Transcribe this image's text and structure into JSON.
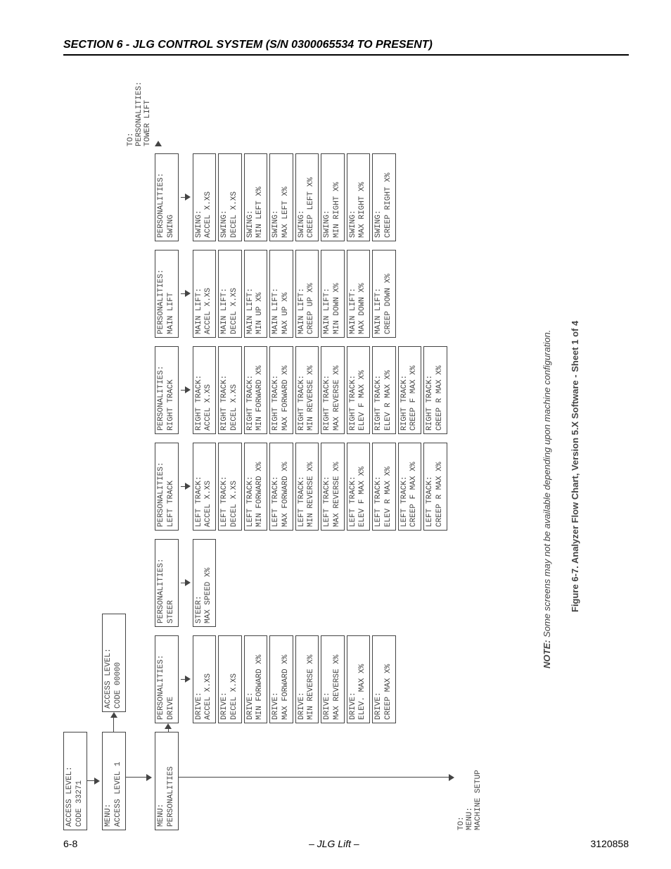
{
  "header": {
    "section_title": "SECTION 6 - JLG CONTROL SYSTEM (S/N 0300065534 TO PRESENT)"
  },
  "footer": {
    "page_left": "6-8",
    "center": "– JLG Lift –",
    "page_right": "3120858"
  },
  "note": {
    "label": "NOTE:",
    "text": "Some screens may not be available depending upon machine configuration."
  },
  "figure_caption": "Figure 6-7.  Analyzer Flow Chart, Version 5.X Software - Sheet 1 of 4",
  "access_level_top": {
    "l1": "ACCESS LEVEL:",
    "l2": "CODE 33271"
  },
  "menu_access_level_1": {
    "l1": "MENU:",
    "l2": "ACCESS LEVEL 1"
  },
  "access_level_code": {
    "l1": "ACCESS LEVEL:",
    "l2": "CODE 00000"
  },
  "menu_personalities": {
    "l1": "MENU:",
    "l2": "PERSONALITIES"
  },
  "to_machine_setup": {
    "l1": "TO:",
    "l2": "MENU:",
    "l3": "MACHINE SETUP"
  },
  "to_tower_lift": {
    "l1": "TO:",
    "l2": "PERSONALITIES:",
    "l3": "TOWER LIFT"
  },
  "columns": {
    "drive": {
      "head": {
        "l1": "PERSONALITIES:",
        "l2": "DRIVE"
      },
      "items": [
        {
          "l1": "DRIVE:",
          "l2": "ACCEL X.XS"
        },
        {
          "l1": "DRIVE:",
          "l2": "DECEL X.XS"
        },
        {
          "l1": "DRIVE:",
          "l2": "MIN FORWARD X%"
        },
        {
          "l1": "DRIVE:",
          "l2": "MAX FORWARD X%"
        },
        {
          "l1": "DRIVE:",
          "l2": "MIN REVERSE X%"
        },
        {
          "l1": "DRIVE:",
          "l2": "MAX REVERSE X%"
        },
        {
          "l1": "DRIVE:",
          "l2": "ELEV. MAX X%"
        },
        {
          "l1": "DRIVE:",
          "l2": "CREEP MAX X%"
        }
      ]
    },
    "steer": {
      "head": {
        "l1": "PERSONALITIES:",
        "l2": "STEER"
      },
      "items": [
        {
          "l1": "STEER:",
          "l2": "MAX SPEED X%"
        }
      ]
    },
    "left_track": {
      "head": {
        "l1": "PERSONALITIES:",
        "l2": "LEFT TRACK"
      },
      "items": [
        {
          "l1": "LEFT TRACK:",
          "l2": "ACCEL X.XS"
        },
        {
          "l1": "LEFT TRACK:",
          "l2": "DECEL X.XS"
        },
        {
          "l1": "LEFT TRACK:",
          "l2": "MIN FORWARD X%"
        },
        {
          "l1": "LEFT TRACK:",
          "l2": "MAX FORWARD X%"
        },
        {
          "l1": "LEFT TRACK:",
          "l2": "MIN REVERSE X%"
        },
        {
          "l1": "LEFT TRACK:",
          "l2": "MAX REVERSE X%"
        },
        {
          "l1": "LEFT TRACK:",
          "l2": "ELEV F MAX X%"
        },
        {
          "l1": "LEFT TRACK:",
          "l2": "ELEV R MAX X%"
        },
        {
          "l1": "LEFT TRACK:",
          "l2": "CREEP F MAX X%"
        },
        {
          "l1": "LEFT TRACK:",
          "l2": "CREEP R MAX X%"
        }
      ]
    },
    "right_track": {
      "head": {
        "l1": "PERSONALITIES:",
        "l2": "RIGHT TRACK"
      },
      "items": [
        {
          "l1": "RIGHT TRACK:",
          "l2": "ACCEL X.XS"
        },
        {
          "l1": "RIGHT TRACK:",
          "l2": "DECEL X.XS"
        },
        {
          "l1": "RIGHT TRACK:",
          "l2": "MIN FORWARD X%"
        },
        {
          "l1": "RIGHT TRACK:",
          "l2": "MAX FORWARD X%"
        },
        {
          "l1": "RIGHT TRACK:",
          "l2": "MIN REVERSE X%"
        },
        {
          "l1": "RIGHT TRACK:",
          "l2": "MAX REVERSE X%"
        },
        {
          "l1": "RIGHT TRACK:",
          "l2": "ELEV F MAX X%"
        },
        {
          "l1": "RIGHT TRACK:",
          "l2": "ELEV R MAX X%"
        },
        {
          "l1": "RIGHT TRACK:",
          "l2": "CREEP F MAX X%"
        },
        {
          "l1": "RIGHT TRACK:",
          "l2": "CREEP R MAX X%"
        }
      ]
    },
    "main_lift": {
      "head": {
        "l1": "PERSONALITIES:",
        "l2": "MAIN LIFT"
      },
      "items": [
        {
          "l1": "MAIN LIFT:",
          "l2": "ACCEL X.XS"
        },
        {
          "l1": "MAIN LIFT:",
          "l2": "DECEL X.XS"
        },
        {
          "l1": "MAIN LIFT:",
          "l2": "MIN UP X%"
        },
        {
          "l1": "MAIN LIFT:",
          "l2": "MAX UP X%"
        },
        {
          "l1": "MAIN LIFT:",
          "l2": "CREEP UP X%"
        },
        {
          "l1": "MAIN LIFT:",
          "l2": "MIN DOWN X%"
        },
        {
          "l1": "MAIN LIFT:",
          "l2": "MAX DOWN X%"
        },
        {
          "l1": "MAIN LIFT:",
          "l2": "CREEP DOWN X%"
        }
      ]
    },
    "swing": {
      "head": {
        "l1": "PERSONALITIES:",
        "l2": "SWING"
      },
      "items": [
        {
          "l1": "SWING:",
          "l2": "ACCEL X.XS"
        },
        {
          "l1": "SWING:",
          "l2": "DECEL X.XS"
        },
        {
          "l1": "SWING:",
          "l2": "MIN LEFT X%"
        },
        {
          "l1": "SWING:",
          "l2": "MAX LEFT X%"
        },
        {
          "l1": "SWING:",
          "l2": "CREEP LEFT X%"
        },
        {
          "l1": "SWING:",
          "l2": "MIN RIGHT X%"
        },
        {
          "l1": "SWING:",
          "l2": "MAX RIGHT X%"
        },
        {
          "l1": "SWING:",
          "l2": "CREEP RIGHT X%"
        }
      ]
    }
  }
}
